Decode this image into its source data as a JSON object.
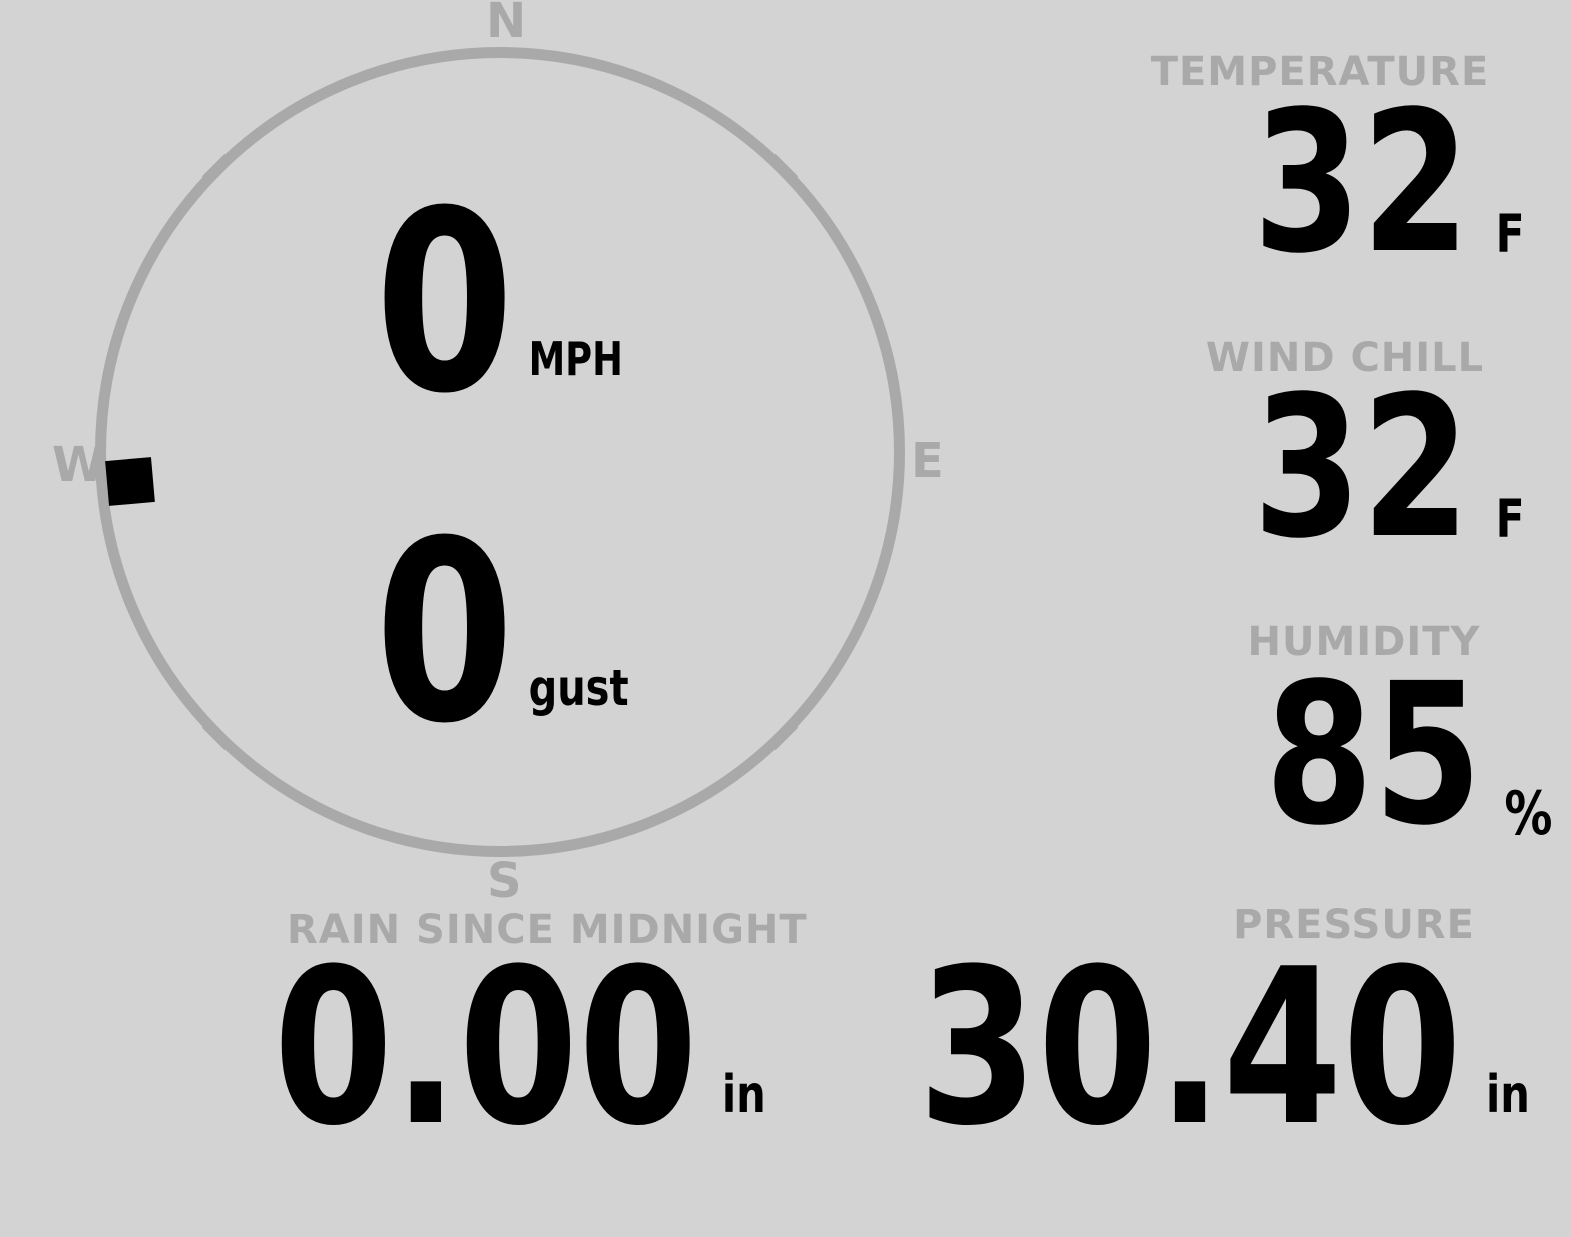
{
  "colors": {
    "background": "#d3d3d3",
    "muted_gray": "#a9a9a9",
    "value_black": "#000000"
  },
  "compass": {
    "cardinals": {
      "north": "N",
      "east": "E",
      "south": "S",
      "west": "W"
    },
    "wind_speed": {
      "value": "0",
      "unit": "MPH"
    },
    "wind_gust": {
      "value": "0",
      "unit": "gust"
    },
    "direction_marker": {
      "position": "west"
    }
  },
  "metrics": {
    "temperature": {
      "label": "TEMPERATURE",
      "value": "32",
      "unit": "F"
    },
    "wind_chill": {
      "label": "WIND CHILL",
      "value": "32",
      "unit": "F"
    },
    "humidity": {
      "label": "HUMIDITY",
      "value": "85",
      "unit": "%"
    },
    "rain_since_midnight": {
      "label": "RAIN SINCE MIDNIGHT",
      "value": "0.00",
      "unit": "in"
    },
    "pressure": {
      "label": "PRESSURE",
      "value": "30.40",
      "unit": "in"
    }
  }
}
